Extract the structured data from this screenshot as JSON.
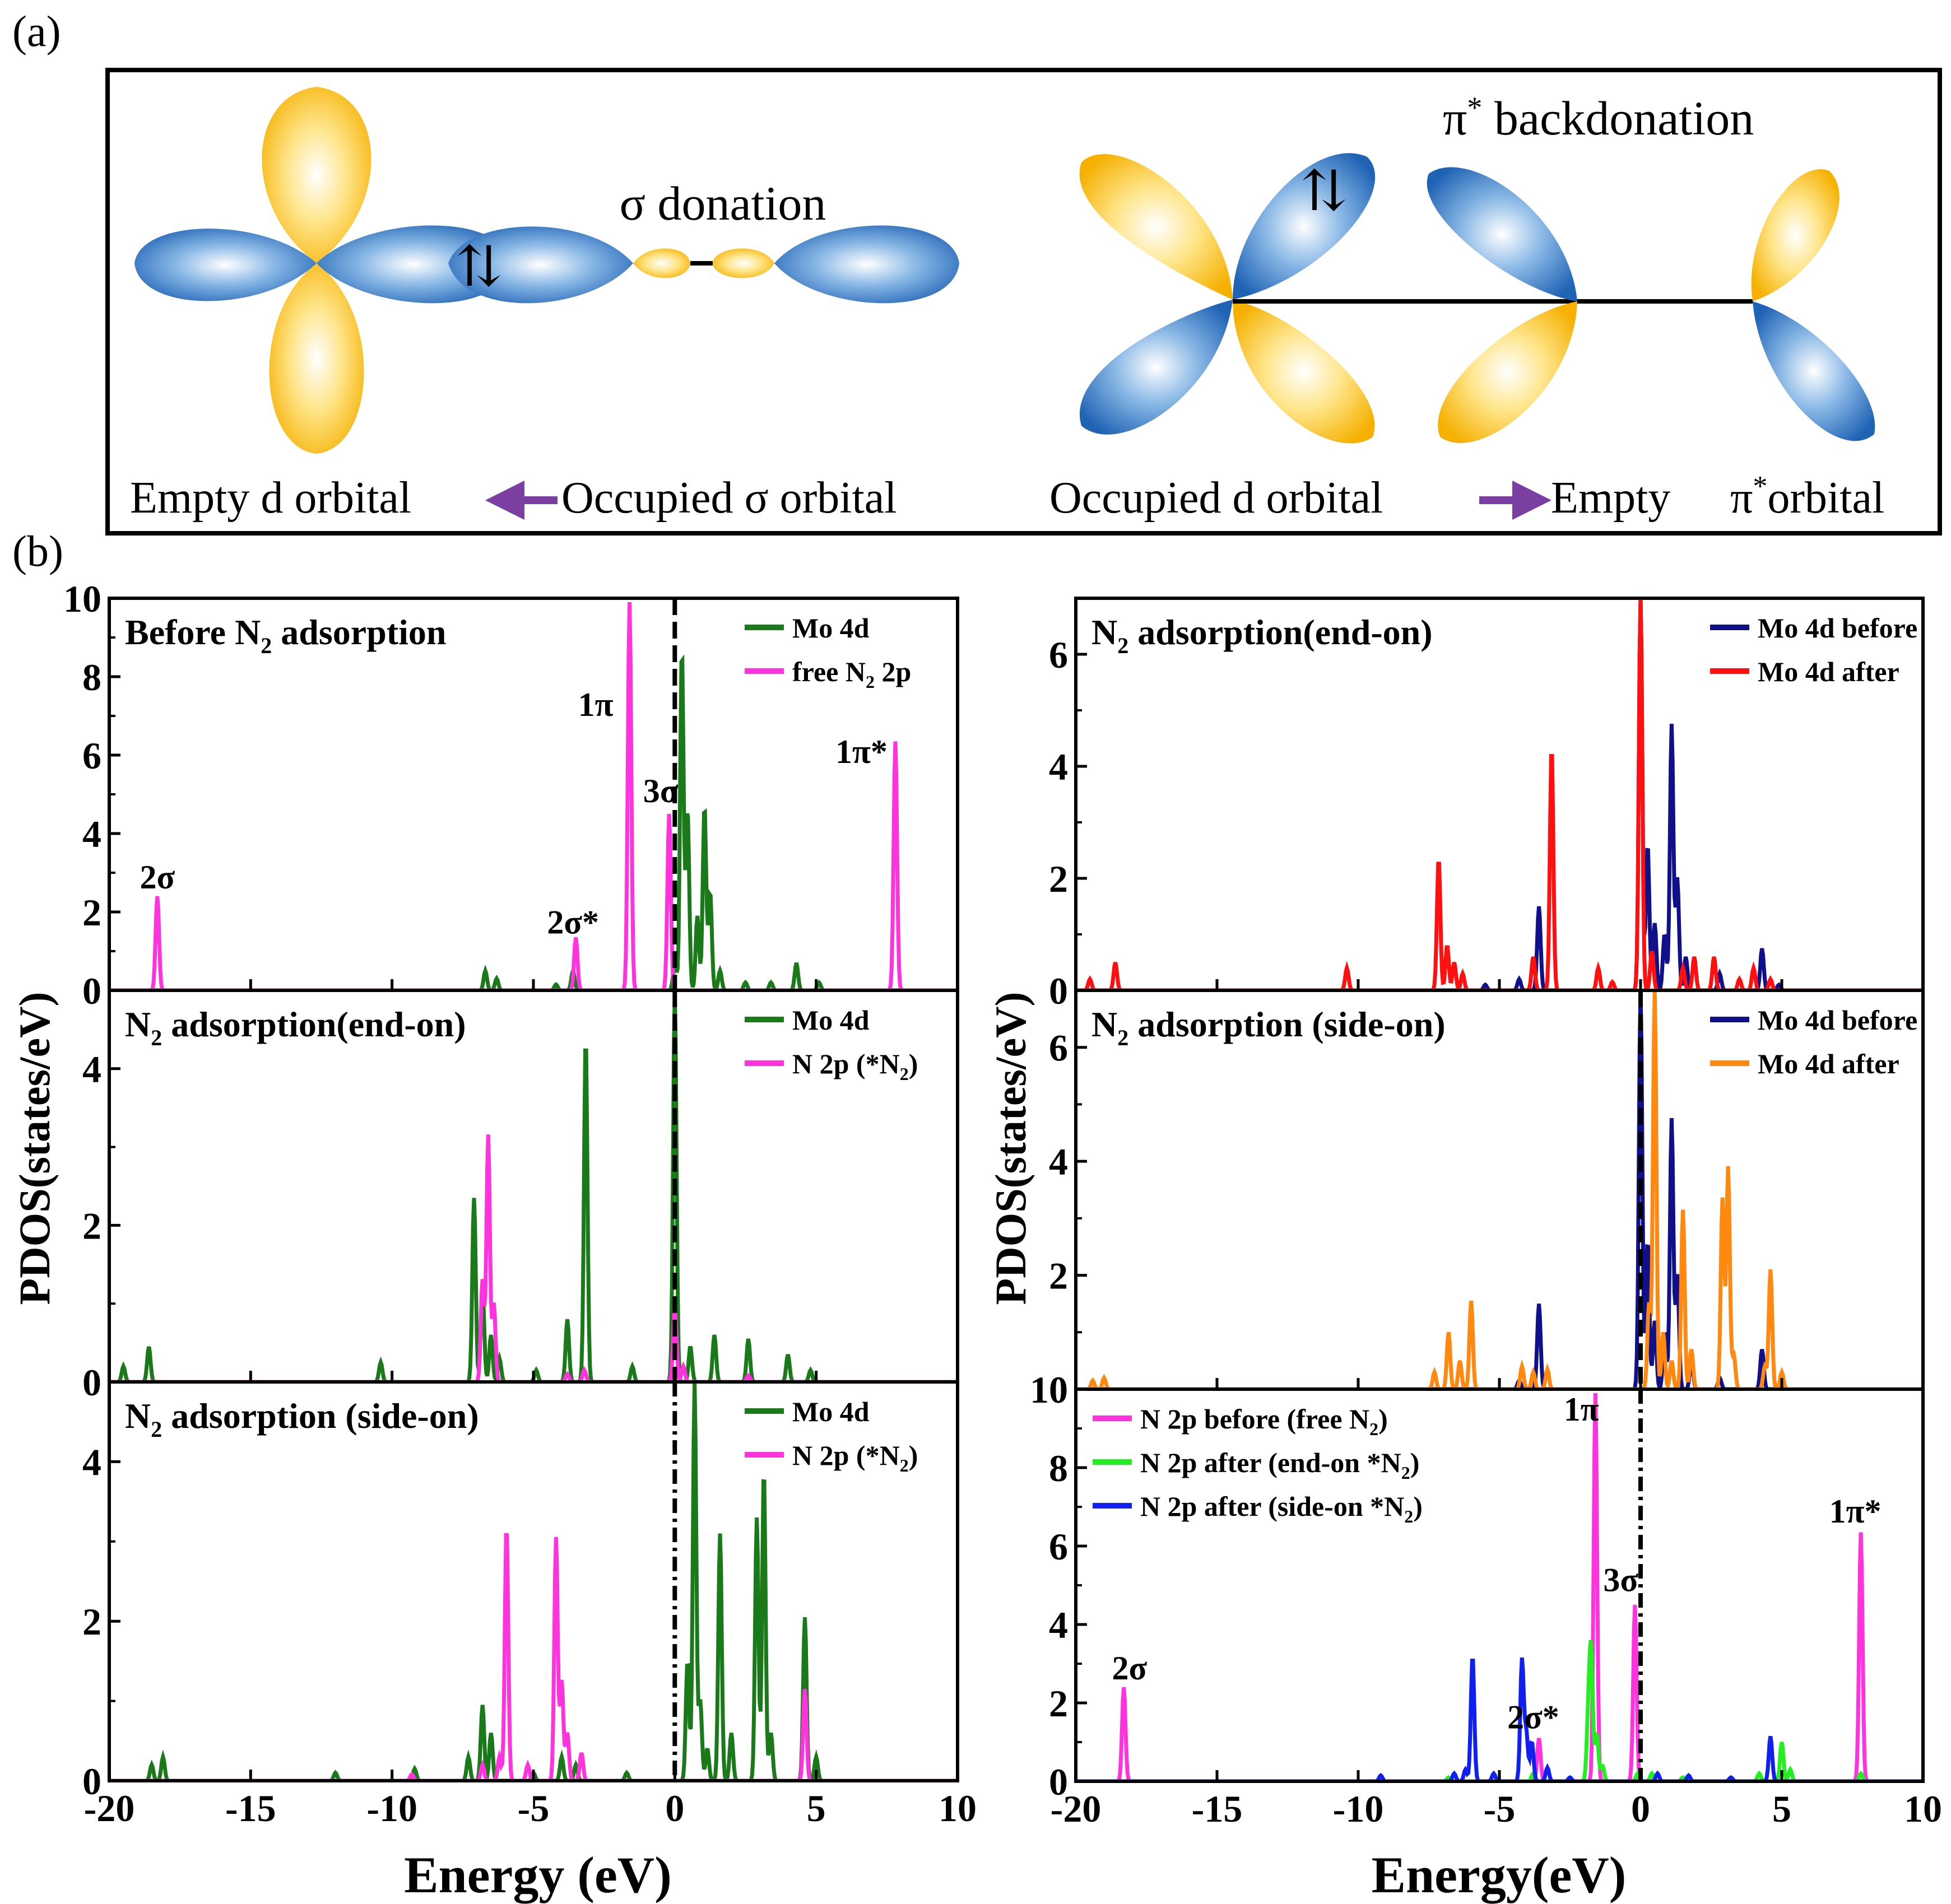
{
  "panel_a": {
    "label": "(a)",
    "sigma": {
      "title": "σ donation",
      "electrons": "⇅",
      "left_caption": "Empty d orbital",
      "right_caption": "Occupied σ orbital"
    },
    "pi": {
      "title_main": "π",
      "title_sup": "*",
      "title_rest": " backdonation",
      "electrons": "⇅",
      "left_caption": "Occupied d orbital",
      "right_caption_1": "Empty",
      "right_caption_pi": "π",
      "right_caption_sup": "*",
      "right_caption_2": "orbital"
    },
    "colors": {
      "yellow": "#f5b800",
      "blue": "#1f6fbf",
      "arrow": "#7a3fa0"
    }
  },
  "panel_b_label": "(b)",
  "chart_data": [
    {
      "type": "line",
      "id": "L1",
      "title": "Before N2 adsorption",
      "title_parts": [
        "Before N",
        "2",
        " adsorption"
      ],
      "xlim": [
        -20,
        10
      ],
      "ylim": [
        0,
        10
      ],
      "yticks": [
        0,
        2,
        4,
        6,
        8,
        10
      ],
      "fermi_style": "dash",
      "series": [
        {
          "name": "Mo  4d",
          "color": "#1a7a1a",
          "peaks": [
            [
              -6.7,
              0.5
            ],
            [
              -6.3,
              0.3
            ],
            [
              -4.2,
              0.15
            ],
            [
              -3.6,
              0.5
            ],
            [
              0.0,
              0.7
            ],
            [
              0.25,
              8.7
            ],
            [
              0.45,
              4.6
            ],
            [
              0.8,
              1.9
            ],
            [
              1.05,
              4.7
            ],
            [
              1.25,
              2.5
            ],
            [
              1.6,
              0.5
            ],
            [
              2.5,
              0.2
            ],
            [
              3.4,
              0.2
            ],
            [
              4.3,
              0.7
            ],
            [
              5.1,
              0.2
            ]
          ]
        },
        {
          "name": "free N2 2p",
          "color": "#ff33dd",
          "peaks": [
            [
              -18.3,
              2.4
            ],
            [
              -3.5,
              1.35
            ],
            [
              -1.6,
              9.9
            ],
            [
              -0.2,
              4.5
            ],
            [
              7.8,
              6.35
            ]
          ]
        }
      ],
      "legend": [
        {
          "text": "Mo  4d",
          "color": "#1a7a1a"
        },
        {
          "text": "free N",
          "sub": "2",
          "text2": " 2p",
          "color": "#ff33dd"
        }
      ],
      "annotations": [
        {
          "text": "2σ",
          "x": -18.3,
          "y": 2.6
        },
        {
          "text": "2σ*",
          "x": -3.6,
          "y": 1.45
        },
        {
          "text": "1π",
          "x": -2.8,
          "y": 7.0
        },
        {
          "text": "3σ",
          "x": -0.5,
          "y": 4.8
        },
        {
          "text": "1π*",
          "x": 6.6,
          "y": 5.8
        }
      ]
    },
    {
      "type": "line",
      "id": "L2",
      "title_parts": [
        "N",
        "2",
        "  adsorption(end-on)"
      ],
      "xlim": [
        -20,
        10
      ],
      "ylim": [
        0,
        5
      ],
      "yticks": [
        0,
        2,
        4
      ],
      "fermi_style": "dash",
      "series": [
        {
          "name": "Mo 4d",
          "color": "#1a7a1a",
          "peaks": [
            [
              -19.5,
              0.2
            ],
            [
              -18.6,
              0.45
            ],
            [
              -10.4,
              0.25
            ],
            [
              -7.1,
              2.35
            ],
            [
              -6.8,
              1.2
            ],
            [
              -6.5,
              0.6
            ],
            [
              -6.2,
              0.3
            ],
            [
              -4.9,
              0.15
            ],
            [
              -3.8,
              0.8
            ],
            [
              -3.15,
              4.4
            ],
            [
              -1.5,
              0.2
            ],
            [
              0.0,
              5.0
            ],
            [
              0.55,
              0.45
            ],
            [
              1.4,
              0.6
            ],
            [
              2.6,
              0.55
            ],
            [
              4.0,
              0.35
            ],
            [
              4.8,
              0.15
            ]
          ]
        },
        {
          "name": "N 2p (*N2)",
          "color": "#ff33dd",
          "peaks": [
            [
              -6.8,
              1.3
            ],
            [
              -6.6,
              3.15
            ],
            [
              -6.4,
              1.0
            ],
            [
              -3.8,
              0.1
            ],
            [
              -3.2,
              0.15
            ],
            [
              0.0,
              0.95
            ],
            [
              0.3,
              0.2
            ],
            [
              2.6,
              0.08
            ]
          ]
        }
      ],
      "legend": [
        {
          "text": "Mo 4d",
          "color": "#1a7a1a"
        },
        {
          "text": "N 2p (*N",
          "sub": "2",
          "text2": ")",
          "color": "#ff33dd"
        }
      ],
      "annotations": []
    },
    {
      "type": "line",
      "id": "L3",
      "title_parts": [
        "N",
        "2",
        " adsorption (side-on)"
      ],
      "xlim": [
        -20,
        10
      ],
      "ylim": [
        0,
        5
      ],
      "yticks": [
        0,
        2,
        4
      ],
      "fermi_style": "dashdot",
      "series": [
        {
          "name": "Mo 4d",
          "color": "#1a7a1a",
          "peaks": [
            [
              -18.5,
              0.2
            ],
            [
              -18.1,
              0.3
            ],
            [
              -12.0,
              0.1
            ],
            [
              -9.2,
              0.15
            ],
            [
              -7.3,
              0.3
            ],
            [
              -6.8,
              0.95
            ],
            [
              -6.5,
              0.6
            ],
            [
              -5.0,
              0.1
            ],
            [
              -4.0,
              0.3
            ],
            [
              -3.5,
              0.2
            ],
            [
              -1.7,
              0.1
            ],
            [
              0.45,
              1.5
            ],
            [
              0.7,
              5.0
            ],
            [
              0.9,
              1.0
            ],
            [
              1.15,
              0.4
            ],
            [
              1.6,
              3.1
            ],
            [
              2.0,
              0.6
            ],
            [
              2.9,
              3.3
            ],
            [
              3.15,
              3.9
            ],
            [
              3.4,
              0.6
            ],
            [
              4.6,
              2.05
            ],
            [
              5.0,
              0.3
            ]
          ]
        },
        {
          "name": "N 2p (*N2)",
          "color": "#ff33dd",
          "peaks": [
            [
              -9.3,
              0.08
            ],
            [
              -6.8,
              0.2
            ],
            [
              -6.2,
              0.3
            ],
            [
              -5.95,
              3.2
            ],
            [
              -5.2,
              0.2
            ],
            [
              -4.2,
              3.05
            ],
            [
              -4.0,
              1.25
            ],
            [
              -3.8,
              0.6
            ],
            [
              -3.3,
              0.35
            ],
            [
              4.6,
              1.15
            ]
          ]
        }
      ],
      "legend": [
        {
          "text": "Mo 4d",
          "color": "#1a7a1a"
        },
        {
          "text": "N 2p  (*N",
          "sub": "2",
          "text2": ")",
          "color": "#ff33dd"
        }
      ],
      "annotations": []
    },
    {
      "type": "line",
      "id": "R1",
      "title_parts": [
        "N",
        "2",
        "  adsorption(end-on)"
      ],
      "xlim": [
        -20,
        10
      ],
      "ylim": [
        0,
        7
      ],
      "yticks": [
        0,
        2,
        4,
        6
      ],
      "fermi_style": "none",
      "series": [
        {
          "name": "Mo 4d before",
          "color": "#10108a",
          "peaks": [
            [
              -3.6,
              1.5
            ],
            [
              -4.3,
              0.2
            ],
            [
              -5.5,
              0.1
            ],
            [
              0.0,
              7.0
            ],
            [
              0.25,
              2.6
            ],
            [
              0.5,
              1.2
            ],
            [
              0.85,
              1.0
            ],
            [
              1.1,
              4.75
            ],
            [
              1.3,
              2.0
            ],
            [
              1.6,
              0.6
            ],
            [
              2.8,
              0.3
            ],
            [
              4.3,
              0.75
            ],
            [
              4.9,
              0.1
            ]
          ]
        },
        {
          "name": "Mo 4d  after",
          "color": "#ff1010",
          "peaks": [
            [
              -19.5,
              0.2
            ],
            [
              -18.6,
              0.5
            ],
            [
              -10.4,
              0.4
            ],
            [
              -7.15,
              2.35
            ],
            [
              -6.85,
              0.8
            ],
            [
              -6.6,
              0.5
            ],
            [
              -6.3,
              0.3
            ],
            [
              -3.8,
              0.6
            ],
            [
              -3.15,
              4.35
            ],
            [
              -1.5,
              0.4
            ],
            [
              -1.0,
              0.15
            ],
            [
              0.0,
              7.0
            ],
            [
              0.4,
              0.7
            ],
            [
              1.5,
              0.4
            ],
            [
              1.9,
              0.6
            ],
            [
              2.6,
              0.6
            ],
            [
              3.5,
              0.2
            ],
            [
              4.0,
              0.4
            ],
            [
              4.6,
              0.2
            ]
          ]
        }
      ],
      "legend": [
        {
          "text": "Mo 4d before",
          "color": "#10108a"
        },
        {
          "text": "Mo 4d  after",
          "color": "#ff1010"
        }
      ],
      "annotations": []
    },
    {
      "type": "line",
      "id": "R2",
      "title_parts": [
        "N",
        "2",
        " adsorption (side-on)"
      ],
      "xlim": [
        -20,
        10
      ],
      "ylim": [
        0,
        7
      ],
      "yticks": [
        0,
        2,
        4,
        6
      ],
      "fermi_style": "dash",
      "series": [
        {
          "name": "Mo 4d before",
          "color": "#10108a",
          "peaks": [
            [
              -3.6,
              1.5
            ],
            [
              -4.3,
              0.15
            ],
            [
              0.0,
              7.0
            ],
            [
              0.25,
              2.6
            ],
            [
              0.5,
              1.2
            ],
            [
              0.85,
              1.0
            ],
            [
              1.1,
              4.75
            ],
            [
              1.3,
              2.0
            ],
            [
              1.8,
              0.5
            ],
            [
              2.8,
              0.2
            ],
            [
              4.3,
              0.7
            ]
          ]
        },
        {
          "name": "Mo 4d after",
          "color": "#ff8810",
          "peaks": [
            [
              -19.4,
              0.15
            ],
            [
              -19.0,
              0.2
            ],
            [
              -7.3,
              0.3
            ],
            [
              -6.8,
              1.0
            ],
            [
              -6.4,
              0.5
            ],
            [
              -6.0,
              1.55
            ],
            [
              -4.2,
              0.4
            ],
            [
              -3.8,
              0.3
            ],
            [
              -3.3,
              0.35
            ],
            [
              0.3,
              1.5
            ],
            [
              0.5,
              7.0
            ],
            [
              0.8,
              1.0
            ],
            [
              1.1,
              0.5
            ],
            [
              1.5,
              3.15
            ],
            [
              1.8,
              0.7
            ],
            [
              2.9,
              3.35
            ],
            [
              3.1,
              3.9
            ],
            [
              3.3,
              0.6
            ],
            [
              4.4,
              0.4
            ],
            [
              4.6,
              2.1
            ],
            [
              5.0,
              0.3
            ]
          ]
        }
      ],
      "legend": [
        {
          "text": "Mo 4d before",
          "color": "#10108a"
        },
        {
          "text": "Mo 4d after",
          "color": "#ff8810"
        }
      ],
      "annotations": []
    },
    {
      "type": "line",
      "id": "R3",
      "xlim": [
        -20,
        10
      ],
      "ylim": [
        0,
        10
      ],
      "yticks": [
        0,
        2,
        4,
        6,
        8,
        10
      ],
      "xticks": [
        -20,
        -15,
        -10,
        -5,
        0,
        5,
        10
      ],
      "fermi_style": "dashdot",
      "series": [
        {
          "name": "N  2p before  (free   N2)",
          "color": "#ff33dd",
          "peaks": [
            [
              -18.3,
              2.4
            ],
            [
              -3.6,
              1.1
            ],
            [
              -1.6,
              9.9
            ],
            [
              -0.2,
              4.5
            ],
            [
              7.8,
              6.35
            ]
          ]
        },
        {
          "name": "N  2p after (end-on *N2)",
          "color": "#22ee22",
          "peaks": [
            [
              -6.8,
              0.1
            ],
            [
              -3.8,
              0.2
            ],
            [
              -1.85,
              1.5
            ],
            [
              -1.75,
              3.15
            ],
            [
              -1.55,
              1.2
            ],
            [
              -1.35,
              0.4
            ],
            [
              -0.1,
              0.2
            ],
            [
              0.4,
              0.2
            ],
            [
              1.5,
              0.1
            ],
            [
              4.2,
              0.2
            ],
            [
              5.0,
              1.0
            ],
            [
              5.3,
              0.3
            ],
            [
              7.8,
              0.2
            ]
          ]
        },
        {
          "name": "N  2p after (side-on *N2)",
          "color": "#1020ee",
          "peaks": [
            [
              -9.2,
              0.15
            ],
            [
              -6.6,
              0.2
            ],
            [
              -6.2,
              0.3
            ],
            [
              -5.95,
              3.2
            ],
            [
              -5.2,
              0.2
            ],
            [
              -4.2,
              3.1
            ],
            [
              -4.05,
              1.25
            ],
            [
              -3.85,
              1.0
            ],
            [
              -3.3,
              0.35
            ],
            [
              -2.5,
              0.1
            ],
            [
              0.6,
              0.2
            ],
            [
              1.7,
              0.15
            ],
            [
              3.2,
              0.1
            ],
            [
              4.6,
              1.15
            ]
          ]
        }
      ],
      "legend": [
        {
          "text": "N  2p before  (free   N",
          "sub": "2",
          "text2": ")",
          "color": "#ff33dd"
        },
        {
          "text": "N  2p after (end-on *N",
          "sub": "2",
          "text2": ")",
          "color": "#22ee22"
        },
        {
          "text": "N  2p after (side-on *N",
          "sub": "2",
          "text2": ")",
          "color": "#1020ee"
        }
      ],
      "annotations": [
        {
          "text": "2σ",
          "x": -18.1,
          "y": 2.6
        },
        {
          "text": "2σ*",
          "x": -3.8,
          "y": 1.35
        },
        {
          "text": "1π",
          "x": -2.1,
          "y": 9.2
        },
        {
          "text": "3σ",
          "x": -0.7,
          "y": 4.85
        },
        {
          "text": "1π*",
          "x": 7.6,
          "y": 6.6
        }
      ]
    }
  ],
  "axes": {
    "left_ylabel": "PDOS(states/eV)",
    "right_ylabel": "PDOS(states/eV)",
    "left_xlabel": "Energy (eV)",
    "right_xlabel": "Energy(eV)",
    "xticks": [
      -20,
      -15,
      -10,
      -5,
      0,
      5,
      10
    ]
  }
}
